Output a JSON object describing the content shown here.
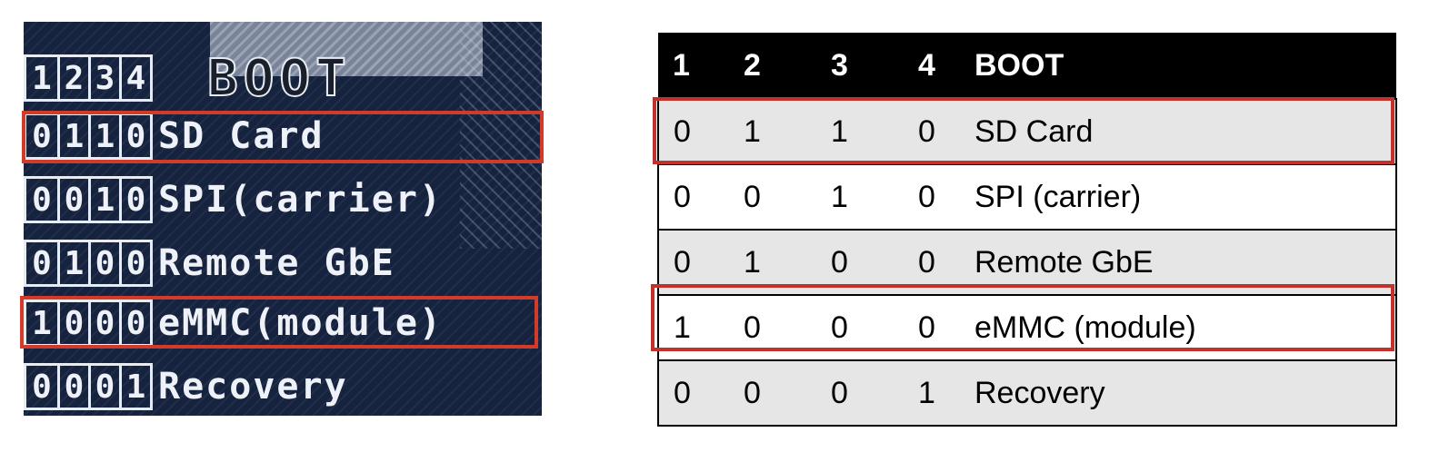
{
  "pcb": {
    "header": {
      "switches": [
        "1",
        "2",
        "3",
        "4"
      ],
      "label": "BOOT"
    },
    "rows": [
      {
        "bits": [
          "0",
          "1",
          "1",
          "0"
        ],
        "label": "SD Card",
        "highlighted": true
      },
      {
        "bits": [
          "0",
          "0",
          "1",
          "0"
        ],
        "label": "SPI(carrier)",
        "highlighted": false
      },
      {
        "bits": [
          "0",
          "1",
          "0",
          "0"
        ],
        "label": "Remote GbE",
        "highlighted": false
      },
      {
        "bits": [
          "1",
          "0",
          "0",
          "0"
        ],
        "label": "eMMC(module)",
        "highlighted": true
      },
      {
        "bits": [
          "0",
          "0",
          "0",
          "1"
        ],
        "label": "Recovery",
        "highlighted": false
      }
    ]
  },
  "table": {
    "headers": [
      "1",
      "2",
      "3",
      "4",
      "BOOT"
    ],
    "rows": [
      {
        "cells": [
          "0",
          "1",
          "1",
          "0",
          "SD Card"
        ],
        "shaded": true,
        "highlighted": true
      },
      {
        "cells": [
          "0",
          "0",
          "1",
          "0",
          "SPI (carrier)"
        ],
        "shaded": false,
        "highlighted": false
      },
      {
        "cells": [
          "0",
          "1",
          "0",
          "0",
          "Remote GbE"
        ],
        "shaded": true,
        "highlighted": false
      },
      {
        "cells": [
          "1",
          "0",
          "0",
          "0",
          "eMMC (module)"
        ],
        "shaded": false,
        "highlighted": true
      },
      {
        "cells": [
          "0",
          "0",
          "0",
          "1",
          "Recovery"
        ],
        "shaded": true,
        "highlighted": false
      }
    ]
  },
  "colors": {
    "highlight": "#c0322b",
    "table_header_bg": "#000000",
    "table_header_text": "#ffffff",
    "row_shade": "#e6e6e6",
    "pcb_bg": "#16233f",
    "silkscreen": "#eef2f8"
  }
}
